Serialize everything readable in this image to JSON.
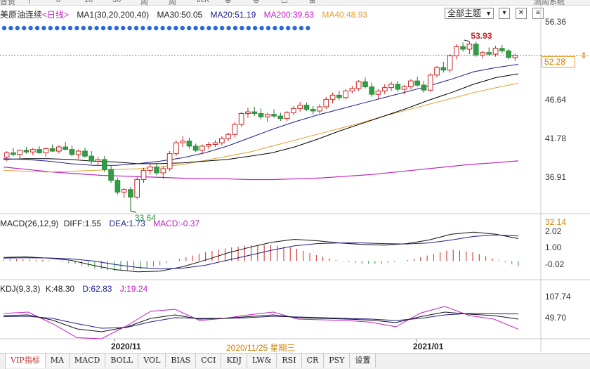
{
  "colors": {
    "up": "#d02020",
    "down": "#2f9e44",
    "ma1": "#222222",
    "ma30": "#1c1c8a",
    "ma20": "#1c1c8a",
    "ma200": "#c020c0",
    "ma40": "#e0a030",
    "accent_price": "#d08000"
  },
  "top_toolbar": [
    "普资",
    "|",
    "8",
    "10",
    "30",
    "周",
    "周",
    "ticK",
    "⊕",
    "⊖",
    "☐",
    "⊞",
    "测周系统"
  ],
  "kline_legend": {
    "symbol": "美原油连续",
    "period": "<日线>",
    "ma1": "MA1(30,20,200,40)",
    "ma30": "MA30:50.05",
    "ma20": "MA20:51.19",
    "ma200": "MA200:39.63",
    "ma40": "MA40:48.93"
  },
  "theme_dropdown": "全部主题",
  "controls": {
    "expand": "▾",
    "close": "✕",
    "settings": "≡"
  },
  "price_axis": [
    "56.36",
    "46.64",
    "41.78",
    "36.91",
    "32.14"
  ],
  "current_price": "52.28",
  "high_label": "53.93",
  "low_label": "33.64",
  "macd_legend": {
    "name": "MACD(26,12,9)",
    "diff": "DIFF:1.55",
    "dea": "DEA:1.73",
    "macd": "MACD:-0.37"
  },
  "macd_axis": [
    "2.02",
    "1.00",
    "-0.02"
  ],
  "kdj_legend": {
    "name": "KDJ(9,3,3)",
    "k": "K:48.30",
    "d": "D:62.83",
    "j": "J:19.24"
  },
  "kdj_axis": [
    "107.74",
    "49.70"
  ],
  "date_axis": {
    "left": "2020/11",
    "current": "2020/11/25 星期三",
    "right": "2021/01"
  },
  "bottom_tabs": [
    "VIP指标",
    "MA",
    "MACD",
    "BOLL",
    "VOL",
    "BIAS",
    "CCI",
    "KDJ",
    "LW&",
    "RSI",
    "CR",
    "PSY",
    "设置"
  ],
  "active_tab": "VIP指标",
  "chart_data": {
    "type": "candlestick",
    "note_axis": "price",
    "ylim": [
      32.14,
      56.36
    ],
    "candles": [
      [
        40.1,
        40.8,
        39.6,
        40.6
      ],
      [
        40.6,
        41.2,
        40.2,
        40.4
      ],
      [
        40.4,
        41.0,
        39.9,
        40.9
      ],
      [
        40.9,
        41.3,
        40.5,
        40.7
      ],
      [
        40.7,
        41.2,
        40.3,
        41.0
      ],
      [
        41.0,
        41.4,
        40.5,
        40.6
      ],
      [
        40.6,
        41.2,
        40.1,
        41.1
      ],
      [
        41.1,
        41.6,
        40.7,
        40.8
      ],
      [
        40.8,
        41.5,
        40.5,
        41.3
      ],
      [
        41.3,
        41.9,
        40.9,
        41.0
      ],
      [
        41.0,
        41.5,
        40.2,
        40.4
      ],
      [
        40.4,
        41.0,
        39.9,
        40.8
      ],
      [
        40.8,
        41.2,
        40.0,
        40.2
      ],
      [
        40.2,
        40.8,
        39.3,
        39.6
      ],
      [
        39.6,
        40.1,
        39.0,
        39.8
      ],
      [
        39.8,
        40.2,
        38.3,
        38.6
      ],
      [
        38.6,
        39.1,
        37.0,
        37.3
      ],
      [
        37.3,
        37.6,
        35.6,
        35.9
      ],
      [
        35.9,
        36.4,
        35.2,
        36.2
      ],
      [
        36.2,
        36.5,
        33.64,
        35.3
      ],
      [
        35.3,
        37.8,
        35.1,
        37.4
      ],
      [
        37.4,
        38.8,
        37.0,
        38.5
      ],
      [
        38.5,
        39.3,
        38.0,
        38.9
      ],
      [
        38.9,
        39.4,
        37.9,
        38.2
      ],
      [
        38.2,
        39.0,
        37.5,
        38.7
      ],
      [
        38.7,
        40.8,
        38.4,
        40.5
      ],
      [
        40.5,
        42.1,
        40.2,
        41.8
      ],
      [
        41.8,
        42.6,
        41.3,
        42.0
      ],
      [
        42.0,
        42.4,
        41.1,
        41.4
      ],
      [
        41.4,
        41.7,
        40.7,
        40.9
      ],
      [
        40.9,
        41.6,
        40.4,
        41.4
      ],
      [
        41.4,
        41.9,
        41.0,
        41.6
      ],
      [
        41.6,
        42.1,
        41.3,
        41.8
      ],
      [
        41.8,
        42.6,
        41.5,
        42.3
      ],
      [
        42.3,
        43.0,
        42.0,
        42.8
      ],
      [
        42.8,
        44.3,
        42.4,
        44.0
      ],
      [
        44.0,
        45.5,
        43.7,
        45.3
      ],
      [
        45.3,
        46.0,
        44.8,
        45.5
      ],
      [
        45.5,
        46.1,
        45.0,
        45.3
      ],
      [
        45.3,
        45.9,
        44.6,
        44.9
      ],
      [
        44.9,
        45.4,
        44.3,
        45.2
      ],
      [
        45.2,
        45.8,
        44.8,
        45.0
      ],
      [
        45.0,
        45.4,
        44.4,
        44.7
      ],
      [
        44.7,
        45.6,
        44.4,
        45.4
      ],
      [
        45.4,
        46.2,
        45.1,
        45.9
      ],
      [
        45.9,
        46.7,
        45.5,
        46.3
      ],
      [
        46.3,
        46.6,
        45.6,
        45.8
      ],
      [
        45.8,
        46.2,
        45.2,
        45.6
      ],
      [
        45.6,
        46.4,
        45.3,
        46.1
      ],
      [
        46.1,
        47.3,
        45.8,
        47.0
      ],
      [
        47.0,
        47.8,
        46.5,
        47.5
      ],
      [
        47.5,
        48.0,
        46.9,
        47.2
      ],
      [
        47.2,
        48.2,
        47.0,
        48.0
      ],
      [
        48.0,
        48.6,
        47.7,
        48.3
      ],
      [
        48.3,
        49.3,
        48.0,
        49.1
      ],
      [
        49.1,
        49.6,
        48.3,
        48.5
      ],
      [
        48.5,
        49.0,
        47.3,
        47.6
      ],
      [
        47.6,
        48.2,
        47.0,
        48.0
      ],
      [
        48.0,
        48.8,
        47.6,
        48.4
      ],
      [
        48.4,
        49.1,
        48.0,
        48.8
      ],
      [
        48.8,
        49.2,
        47.9,
        48.2
      ],
      [
        48.2,
        48.7,
        47.6,
        48.5
      ],
      [
        48.5,
        49.4,
        48.2,
        49.2
      ],
      [
        49.2,
        49.7,
        48.5,
        48.7
      ],
      [
        48.7,
        49.2,
        47.8,
        48.1
      ],
      [
        48.1,
        50.1,
        47.9,
        49.9
      ],
      [
        49.9,
        51.0,
        49.6,
        50.8
      ],
      [
        50.8,
        51.5,
        50.2,
        50.5
      ],
      [
        50.5,
        52.4,
        50.2,
        52.2
      ],
      [
        52.2,
        53.6,
        51.8,
        53.3
      ],
      [
        53.3,
        53.8,
        52.7,
        53.0
      ],
      [
        53.0,
        53.93,
        52.4,
        53.6
      ],
      [
        53.6,
        53.9,
        52.1,
        52.3
      ],
      [
        52.3,
        52.8,
        51.9,
        52.6
      ],
      [
        52.6,
        53.2,
        52.2,
        52.4
      ],
      [
        52.4,
        53.4,
        52.1,
        53.1
      ],
      [
        53.1,
        53.5,
        52.5,
        52.8
      ],
      [
        52.8,
        53.0,
        51.8,
        52.0
      ],
      [
        52.0,
        52.5,
        51.6,
        52.28
      ]
    ],
    "ma30_line": [
      39.8,
      39.9,
      39.9,
      39.8,
      39.6,
      39.5,
      39.3,
      39.3,
      39.4,
      39.6,
      39.8,
      40.2,
      40.6,
      41.3,
      42.2,
      43.2,
      44.1,
      45.0,
      45.9,
      46.9,
      47.8,
      48.8,
      49.6,
      50.05
    ],
    "ma20_line": [
      39.9,
      39.8,
      39.6,
      39.3,
      39.1,
      39.1,
      39.3,
      39.6,
      40.0,
      40.6,
      41.4,
      42.4,
      43.4,
      44.3,
      45.1,
      45.8,
      46.5,
      47.2,
      47.9,
      48.6,
      49.4,
      50.3,
      50.8,
      51.19
    ],
    "ma40_line": [
      38.5,
      38.4,
      38.3,
      38.4,
      38.5,
      38.6,
      38.7,
      38.9,
      39.2,
      39.7,
      40.2,
      40.7,
      41.4,
      42.1,
      42.8,
      43.5,
      44.2,
      45.0,
      45.7,
      46.4,
      47.1,
      47.8,
      48.4,
      48.93
    ],
    "ma200_line": [
      38.9,
      38.6,
      38.3,
      38.1,
      37.9,
      37.8,
      37.7,
      37.6,
      37.5,
      37.5,
      37.4,
      37.4,
      37.5,
      37.6,
      37.8,
      38.0,
      38.3,
      38.6,
      38.9,
      39.2,
      39.4,
      39.63
    ],
    "macd": {
      "ylim": [
        -1.3,
        2.4
      ],
      "diff": [
        0.25,
        0.28,
        0.2,
        0.05,
        -0.3,
        -0.6,
        -0.75,
        -0.7,
        -0.4,
        0.05,
        0.55,
        0.95,
        1.3,
        1.5,
        1.4,
        1.25,
        1.15,
        1.1,
        1.2,
        1.45,
        1.85,
        2.0,
        1.85,
        1.55
      ],
      "dea": [
        0.2,
        0.22,
        0.21,
        0.15,
        0.0,
        -0.25,
        -0.45,
        -0.55,
        -0.5,
        -0.3,
        0.05,
        0.4,
        0.75,
        1.05,
        1.2,
        1.25,
        1.25,
        1.2,
        1.18,
        1.25,
        1.45,
        1.7,
        1.8,
        1.73
      ],
      "hist": [
        0.1,
        0.12,
        0.05,
        -0.15,
        -0.5,
        -0.7,
        -0.6,
        -0.3,
        0.2,
        0.6,
        0.9,
        1.1,
        1.1,
        0.9,
        0.4,
        0.0,
        -0.2,
        -0.2,
        0.05,
        0.4,
        0.8,
        0.6,
        0.1,
        -0.37
      ]
    },
    "kdj": {
      "ylim": [
        0,
        120
      ],
      "k": [
        58,
        60,
        45,
        20,
        12,
        25,
        50,
        60,
        48,
        50,
        55,
        60,
        52,
        50,
        48,
        45,
        38,
        55,
        68,
        62,
        58,
        48
      ],
      "d": [
        55,
        56,
        50,
        35,
        22,
        24,
        40,
        52,
        50,
        50,
        52,
        56,
        54,
        52,
        50,
        48,
        44,
        50,
        60,
        64,
        63,
        62.83
      ],
      "j": [
        64,
        68,
        35,
        -5,
        -8,
        28,
        70,
        76,
        44,
        50,
        60,
        68,
        48,
        46,
        44,
        39,
        26,
        65,
        84,
        58,
        48,
        19.24
      ]
    }
  }
}
